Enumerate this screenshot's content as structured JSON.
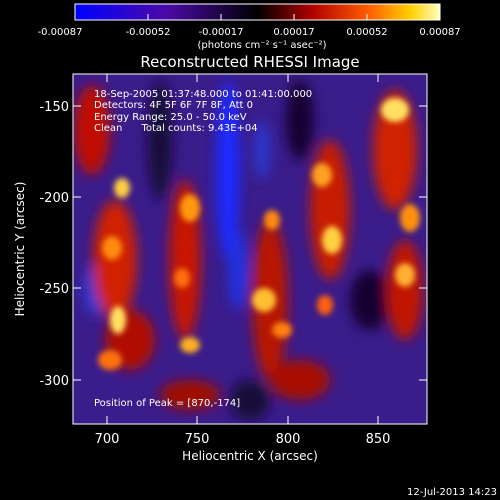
{
  "colorbar": {
    "tick_labels": [
      "-0.00087",
      "-0.00052",
      "-0.00017",
      "0.00017",
      "0.00052",
      "0.00087"
    ],
    "unit_label": "(photons cm⁻² s⁻¹ asec⁻²)"
  },
  "title": "Reconstructed RHESSI Image",
  "info": {
    "time_range": "18-Sep-2005 01:37:48.000 to 01:41:00.000",
    "detectors": "Detectors: 4F 5F 6F 7F 8F, Att 0",
    "energy": "Energy Range: 25.0 - 50.0 keV",
    "algorithm": "Clean      Total counts: 9.43E+04",
    "peak": "Position of Peak = [870,-174]"
  },
  "axes": {
    "xlabel": "Heliocentric X (arcsec)",
    "ylabel": "Heliocentric Y (arcsec)",
    "x_ticks": [
      "700",
      "750",
      "800",
      "850"
    ],
    "y_ticks": [
      "-150",
      "-200",
      "-250",
      "-300"
    ]
  },
  "footer": {
    "timestamp": "12-Jul-2013 14:23"
  },
  "colors": {
    "negative": "#1010ff",
    "zero": "#000000",
    "positive": "#ffff80"
  }
}
